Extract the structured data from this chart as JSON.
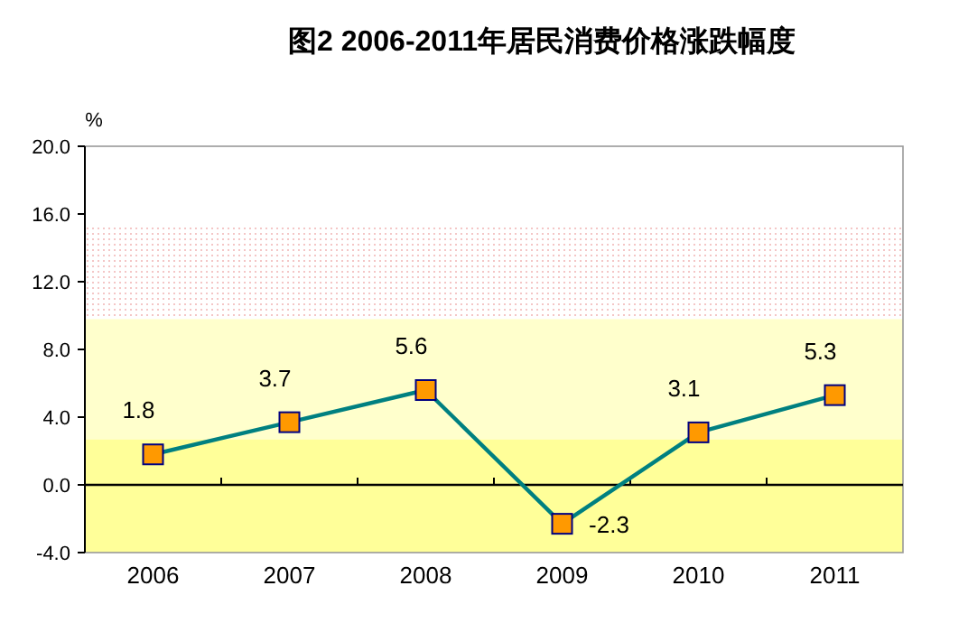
{
  "chart_data": {
    "type": "line",
    "title": "图2 2006-2011年居民消费价格涨跌幅度",
    "ylabel": "%",
    "categories": [
      "2006",
      "2007",
      "2008",
      "2009",
      "2010",
      "2011"
    ],
    "series": [
      {
        "color": "#008080",
        "values": [
          1.8,
          3.7,
          5.6,
          -2.3,
          3.1,
          5.3
        ]
      }
    ],
    "ylim": [
      -4,
      20
    ],
    "yticks": [
      {
        "value": -4,
        "label": "-4.0"
      },
      {
        "value": 0,
        "label": "0.0"
      },
      {
        "value": 4,
        "label": "4.0"
      },
      {
        "value": 8,
        "label": "8.0"
      },
      {
        "value": 12,
        "label": "12.0"
      },
      {
        "value": 16,
        "label": "16.0"
      },
      {
        "value": 20,
        "label": "20.0"
      }
    ],
    "bands": [
      {
        "axis": "y",
        "from": -4,
        "to": 2.7,
        "color": "#ffff99"
      },
      {
        "axis": "y",
        "from": 2.7,
        "to": 9.8,
        "color": "#ffffcc"
      },
      {
        "axis": "y",
        "from": 9.8,
        "to": 15.2,
        "color": "#f4c6c6"
      }
    ],
    "marker": "square",
    "line_style": "solid",
    "data_labels": true
  }
}
